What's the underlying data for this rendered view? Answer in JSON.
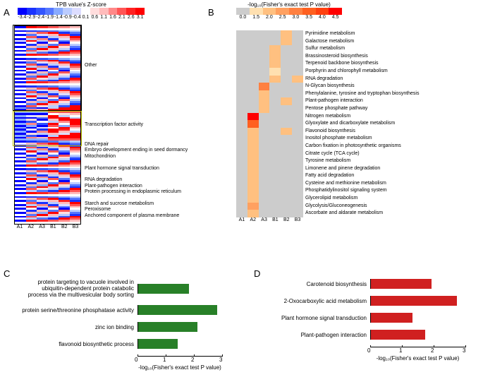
{
  "panelA": {
    "label": "A",
    "colorbar": {
      "title": "TPB value's Z-score",
      "gradient": [
        "#0000ff",
        "#1a33ff",
        "#3355ff",
        "#5577ff",
        "#88aaff",
        "#bbccff",
        "#ddddff",
        "#ffffff",
        "#ffdddd",
        "#ffbbbb",
        "#ff8888",
        "#ff5555",
        "#ff2222",
        "#ff0000"
      ],
      "ticks": [
        "-3.4",
        "-2.9",
        "-2.4",
        "-1.9",
        "-1.4",
        "-0.9",
        "-0.4",
        "0.1",
        "0.6",
        "1.1",
        "1.6",
        "2.1",
        "2.6",
        "3.1"
      ]
    },
    "cols": [
      "A1",
      "A2",
      "A3",
      "B1",
      "B2",
      "B3"
    ],
    "nrows": 100,
    "annotations": [
      {
        "row": 20,
        "text": "Other"
      },
      {
        "row": 50,
        "text": "Transcription factor activity"
      },
      {
        "row": 60,
        "text": "DNA repair"
      },
      {
        "row": 63,
        "text": "Embryo development ending in seed dormancy"
      },
      {
        "row": 66,
        "text": "Mitochondrion"
      },
      {
        "row": 72,
        "text": "Plant hormone signal transduction"
      },
      {
        "row": 78,
        "text": "RNA degradation"
      },
      {
        "row": 81,
        "text": "Plant-pathogen interaction"
      },
      {
        "row": 84,
        "text": "Protein processing in endoplasmic reticulum"
      },
      {
        "row": 90,
        "text": "Starch and sucrose metabolism"
      },
      {
        "row": 93,
        "text": "Peroxisome"
      },
      {
        "row": 96,
        "text": "Anchored component of plasma membrane"
      }
    ]
  },
  "panelB": {
    "label": "B",
    "colorbar": {
      "title": "-log₁₀(Fisher's exact test P value)",
      "gradient": [
        "#cccccc",
        "#ffe0b0",
        "#ffc080",
        "#ffa060",
        "#ff8040",
        "#ff6020",
        "#ff4010",
        "#ff0000"
      ],
      "ticks": [
        "0.0",
        "1.5",
        "2.0",
        "2.5",
        "3.0",
        "3.5",
        "4.0",
        "4.5"
      ]
    },
    "cols": [
      "A1",
      "A2",
      "A3",
      "B1",
      "B2",
      "B3"
    ],
    "rows": [
      "Pyrimidine metabolism",
      "Galactose metabolism",
      "Sulfur metabolism",
      "Brassinosteroid biosynthesis",
      "Terpenoid backbone biosynthesis",
      "Porphyrin and chlorophyll metabolism",
      "RNA degradation",
      "N-Glycan biosynthesis",
      "Phenylalanine, tyrosine and tryptophan biosynthesis",
      "Plant-pathogen interaction",
      "Pentose phosphate pathway",
      "Nitrogen metabolism",
      "Glyoxylate and dicarboxylate metabolism",
      "Flavonoid biosynthesis",
      "Inositol phosphate metabolism",
      "Carbon fixation in photosynthetic organisms",
      "Citrate cycle (TCA cycle)",
      "Tyrosine metabolism",
      "Limonene and pinene degradation",
      "Fatty acid degradation",
      "Cysteine and methionine metabolism",
      "Phosphatidylinositol signaling system",
      "Glycerolipid metabolism",
      "Glycolysis/Gluconeogenesis",
      "Ascorbate and aldarate metabolism"
    ],
    "cells": [
      [
        0,
        0,
        0,
        0,
        2.0,
        0
      ],
      [
        0,
        0,
        0,
        0,
        2.0,
        0
      ],
      [
        0,
        0,
        0,
        2.2,
        0,
        0
      ],
      [
        0,
        0,
        0,
        2.0,
        0,
        0
      ],
      [
        0,
        0,
        0,
        2.0,
        0,
        0
      ],
      [
        0,
        0,
        0,
        1.5,
        0,
        0
      ],
      [
        0,
        0,
        0,
        2.2,
        0,
        2.0
      ],
      [
        0,
        0,
        3.0,
        0,
        0,
        0
      ],
      [
        0,
        0,
        2.0,
        0,
        0,
        0
      ],
      [
        0,
        0,
        2.0,
        0,
        2.2,
        0
      ],
      [
        0,
        0,
        2.0,
        0,
        0,
        0
      ],
      [
        0,
        4.5,
        0,
        0,
        0,
        0
      ],
      [
        0,
        3.5,
        0,
        0,
        0,
        0
      ],
      [
        0,
        2.0,
        0,
        0,
        2.0,
        0
      ],
      [
        0,
        2.0,
        0,
        0,
        0,
        0
      ],
      [
        0,
        2.0,
        0,
        0,
        0,
        0
      ],
      [
        0,
        2.0,
        0,
        0,
        0,
        0
      ],
      [
        0,
        2.0,
        0,
        0,
        0,
        0
      ],
      [
        0,
        2.0,
        0,
        0,
        0,
        0
      ],
      [
        0,
        2.2,
        0,
        0,
        0,
        0
      ],
      [
        0,
        2.0,
        0,
        0,
        0,
        0
      ],
      [
        0,
        2.0,
        0,
        0,
        0,
        0
      ],
      [
        0,
        2.2,
        0,
        0,
        0,
        0
      ],
      [
        0,
        2.5,
        0,
        0,
        0,
        0
      ],
      [
        0,
        2.0,
        0,
        0,
        0,
        0
      ]
    ]
  },
  "panelC": {
    "label": "C",
    "xlabel": "-log₁₀(Fisher's exact test P value)",
    "xticks": [
      "0",
      "1",
      "2",
      "3"
    ],
    "xmax": 3,
    "color": "#288028",
    "bars": [
      {
        "label": "protein targeting to vacuole involved in\nubiquitin-dependent protein catabolic\nprocess via the multivesicular body sorting",
        "value": 1.8
      },
      {
        "label": "protein serine/threonine phosphatase activity",
        "value": 2.8
      },
      {
        "label": "zinc ion binding",
        "value": 2.1
      },
      {
        "label": "flavonoid biosynthetic process",
        "value": 1.4
      }
    ]
  },
  "panelD": {
    "label": "D",
    "xlabel": "-log₁₀(Fisher's exact test P value)",
    "xticks": [
      "0",
      "1",
      "2",
      "3"
    ],
    "xmax": 3,
    "color": "#d02020",
    "bars": [
      {
        "label": "Carotenoid biosynthesis",
        "value": 1.9
      },
      {
        "label": "2-Oxocarboxylic acid metabolism",
        "value": 2.7
      },
      {
        "label": "Plant hormone signal transduction",
        "value": 1.3
      },
      {
        "label": "Plant-pathogen interaction",
        "value": 1.7
      }
    ]
  }
}
